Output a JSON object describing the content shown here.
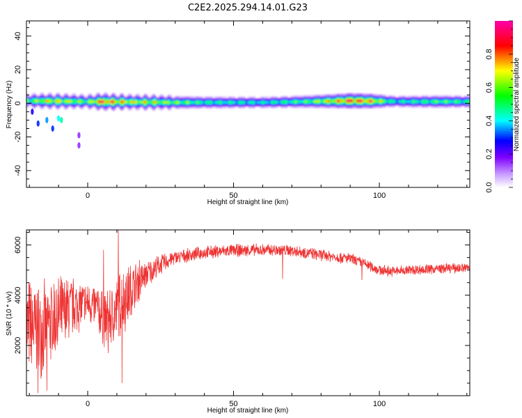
{
  "title": "C2E2.2025.294.14.01.G23",
  "chart_data": [
    {
      "type": "heatmap",
      "xlabel": "Height of straight line (km)",
      "ylabel": "Frequency (Hz)",
      "xlim": [
        -21,
        131
      ],
      "ylim": [
        -50,
        49
      ],
      "x_ticks": [
        0,
        50,
        100
      ],
      "y_ticks": [
        -40,
        -20,
        0,
        20,
        40
      ],
      "colorbar": {
        "label": "Normalized spectral amplitude",
        "range": [
          0,
          1
        ],
        "ticks": [
          "0.0",
          "0.2",
          "0.4",
          "0.6",
          "0.8"
        ],
        "colors": [
          "#ffffff",
          "#8000ff",
          "#0000ff",
          "#00ffff",
          "#00ff00",
          "#ffff00",
          "#ff0000",
          "#ff00ff"
        ]
      },
      "band_center_hz": [
        {
          "x": -20,
          "y": 1.5
        },
        {
          "x": 0,
          "y": 1
        },
        {
          "x": 30,
          "y": 0.5
        },
        {
          "x": 60,
          "y": 0.5
        },
        {
          "x": 90,
          "y": 1.5
        },
        {
          "x": 110,
          "y": 1
        },
        {
          "x": 131,
          "y": 1
        }
      ],
      "peak_amplitude": [
        {
          "x": -20,
          "a": 0.55
        },
        {
          "x": -15,
          "a": 0.7
        },
        {
          "x": -5,
          "a": 0.65
        },
        {
          "x": 0,
          "a": 0.55
        },
        {
          "x": 5,
          "a": 0.9
        },
        {
          "x": 10,
          "a": 0.75
        },
        {
          "x": 15,
          "a": 0.7
        },
        {
          "x": 25,
          "a": 0.65
        },
        {
          "x": 40,
          "a": 0.5
        },
        {
          "x": 60,
          "a": 0.45
        },
        {
          "x": 75,
          "a": 0.55
        },
        {
          "x": 85,
          "a": 0.75
        },
        {
          "x": 90,
          "a": 0.88
        },
        {
          "x": 97,
          "a": 0.8
        },
        {
          "x": 105,
          "a": 0.45
        },
        {
          "x": 120,
          "a": 0.55
        },
        {
          "x": 131,
          "a": 0.5
        }
      ],
      "scatter_blobs": [
        {
          "x": -17,
          "y": -12,
          "a": 0.3
        },
        {
          "x": -14,
          "y": -10,
          "a": 0.35
        },
        {
          "x": -12,
          "y": -15,
          "a": 0.3
        },
        {
          "x": -10,
          "y": -9,
          "a": 0.4
        },
        {
          "x": -9,
          "y": -10,
          "a": 0.45
        },
        {
          "x": -19,
          "y": -5,
          "a": 0.25
        },
        {
          "x": -3,
          "y": -19,
          "a": 0.15
        },
        {
          "x": -3,
          "y": -25,
          "a": 0.15
        }
      ]
    },
    {
      "type": "line",
      "xlabel": "Height of straight line (km)",
      "ylabel": "SNR (10 * v/v)",
      "xlim": [
        -21,
        131
      ],
      "ylim": [
        0,
        6600
      ],
      "x_ticks": [
        0,
        50,
        100
      ],
      "y_ticks": [
        2000,
        4000,
        6000
      ],
      "series": [
        {
          "color": "#ee3333",
          "trend": [
            {
              "x": -21,
              "y": 2800
            },
            {
              "x": -18,
              "y": 2600
            },
            {
              "x": -15,
              "y": 2700
            },
            {
              "x": -12,
              "y": 3000
            },
            {
              "x": -9,
              "y": 3200
            },
            {
              "x": -6,
              "y": 3500
            },
            {
              "x": -3,
              "y": 3600
            },
            {
              "x": 0,
              "y": 3700
            },
            {
              "x": 3,
              "y": 3500
            },
            {
              "x": 6,
              "y": 3000
            },
            {
              "x": 9,
              "y": 3200
            },
            {
              "x": 12,
              "y": 3800
            },
            {
              "x": 15,
              "y": 4200
            },
            {
              "x": 18,
              "y": 4600
            },
            {
              "x": 21,
              "y": 4900
            },
            {
              "x": 24,
              "y": 5150
            },
            {
              "x": 27,
              "y": 5350
            },
            {
              "x": 30,
              "y": 5500
            },
            {
              "x": 35,
              "y": 5600
            },
            {
              "x": 40,
              "y": 5700
            },
            {
              "x": 50,
              "y": 5780
            },
            {
              "x": 60,
              "y": 5800
            },
            {
              "x": 70,
              "y": 5780
            },
            {
              "x": 80,
              "y": 5600
            },
            {
              "x": 90,
              "y": 5450
            },
            {
              "x": 95,
              "y": 5250
            },
            {
              "x": 100,
              "y": 5000
            },
            {
              "x": 105,
              "y": 4950
            },
            {
              "x": 110,
              "y": 5000
            },
            {
              "x": 120,
              "y": 5050
            },
            {
              "x": 131,
              "y": 5100
            }
          ],
          "noise": [
            {
              "x": -21,
              "amp": 2300
            },
            {
              "x": -10,
              "amp": 1800
            },
            {
              "x": 0,
              "amp": 900
            },
            {
              "x": 5,
              "amp": 1200
            },
            {
              "x": 12,
              "amp": 1600
            },
            {
              "x": 20,
              "amp": 600
            },
            {
              "x": 30,
              "amp": 300
            },
            {
              "x": 131,
              "amp": 220
            }
          ],
          "spikes": [
            {
              "x": 10.5,
              "y": 6600
            },
            {
              "x": 11.8,
              "y": 500
            },
            {
              "x": 7,
              "y": 1700
            },
            {
              "x": 5.4,
              "y": 5800
            },
            {
              "x": 66.8,
              "y": 4650
            },
            {
              "x": 94,
              "y": 4600
            },
            {
              "x": -17,
              "y": 100
            },
            {
              "x": -14,
              "y": 200
            },
            {
              "x": 17.8,
              "y": 5400
            }
          ]
        }
      ]
    }
  ]
}
